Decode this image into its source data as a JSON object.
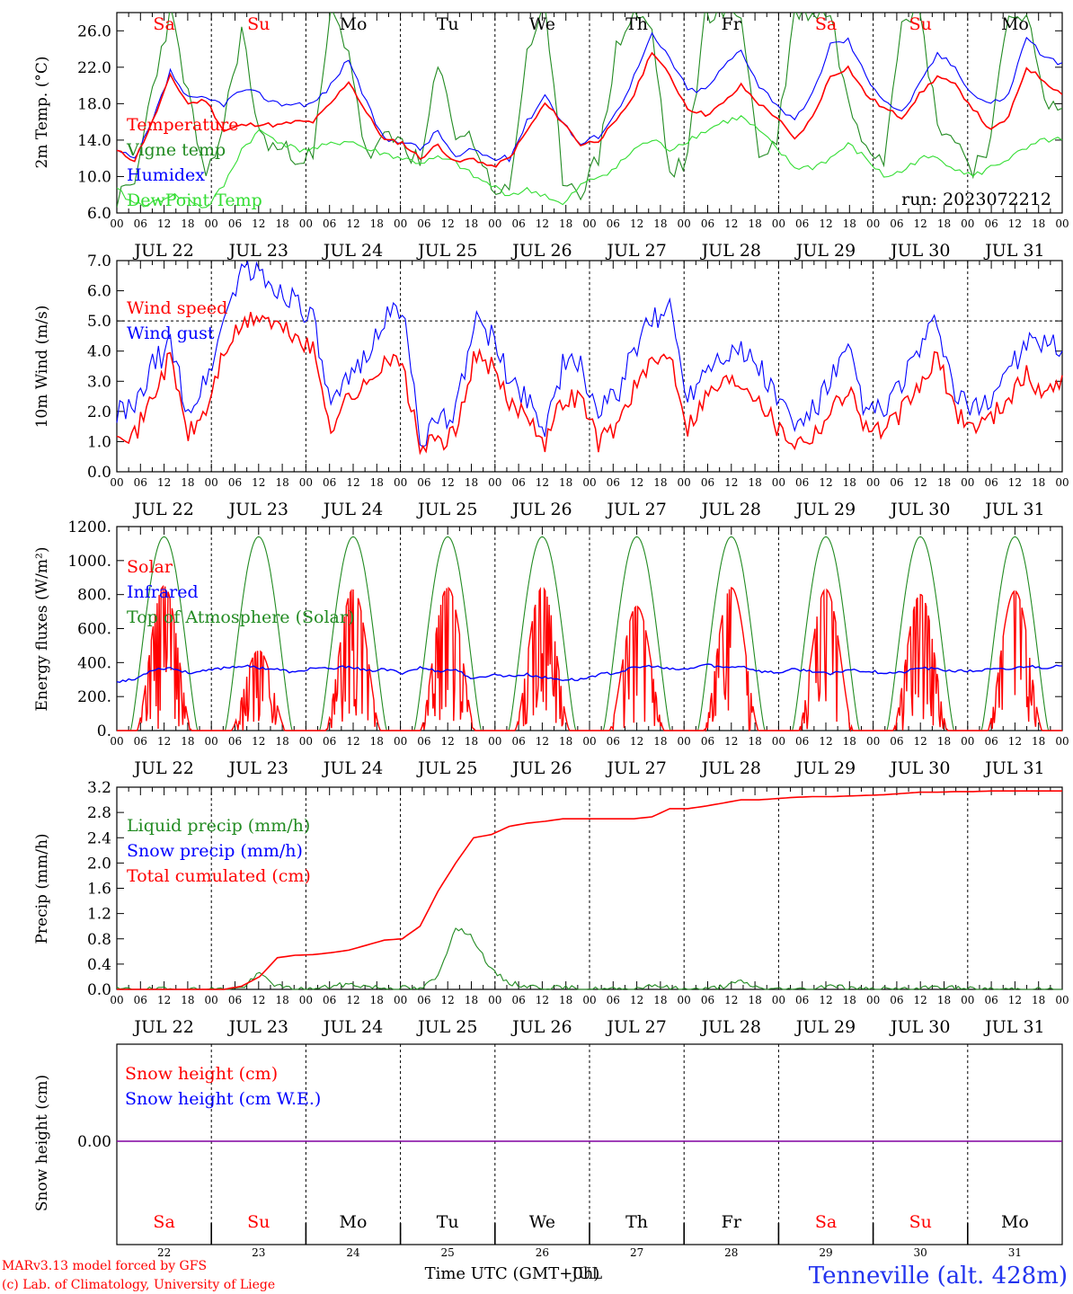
{
  "colors": {
    "red": "#ff0000",
    "green": "#228b22",
    "blue": "#0000ff",
    "lightgreen": "#33dd33",
    "purple": "#8000a0",
    "black": "#000000"
  },
  "footer": {
    "credit_line1": "MARv3.13 model forced by GFS",
    "credit_line2": "(c) Lab. of Climatology, University of Liege",
    "xaxis_title": "Time UTC (GMT+0h)",
    "xaxis_overlap": "JUL",
    "station": "Tenneville (alt. 428m)"
  },
  "axis": {
    "hour_labels": [
      "00",
      "06",
      "12",
      "18",
      "00",
      "06",
      "12",
      "18",
      "00",
      "06",
      "12",
      "18",
      "00",
      "06",
      "12",
      "18",
      "00",
      "06",
      "12",
      "18",
      "00",
      "06",
      "12",
      "18",
      "00",
      "06",
      "12",
      "18",
      "00",
      "06",
      "12",
      "18",
      "00",
      "06",
      "12",
      "18",
      "00",
      "06",
      "12",
      "18",
      "00"
    ],
    "day_labels": [
      "JUL 22",
      "JUL 23",
      "JUL 24",
      "JUL 25",
      "JUL 26",
      "JUL 27",
      "JUL 28",
      "JUL 29",
      "JUL 30",
      "JUL 31"
    ],
    "weekdays": [
      "Sa",
      "Su",
      "Mo",
      "Tu",
      "We",
      "Th",
      "Fr",
      "Sa",
      "Su",
      "Mo"
    ],
    "weekend_flags": [
      true,
      true,
      false,
      false,
      false,
      false,
      false,
      true,
      true,
      false
    ],
    "day_numbers": [
      "22",
      "23",
      "24",
      "25",
      "26",
      "27",
      "28",
      "29",
      "30",
      "31"
    ]
  },
  "chart_data": [
    {
      "type": "line",
      "ylabel": "2m Temp. (°C)",
      "ylim": [
        6.0,
        28.0
      ],
      "yticks": [
        "6.0",
        "10.0",
        "14.0",
        "18.0",
        "22.0",
        "26.0"
      ],
      "run_label": "run: 2023072212",
      "series": [
        {
          "name": "Temperature",
          "color": "#ff0000",
          "values": [
            12.8,
            11.8,
            16,
            21,
            18,
            18.4,
            15,
            15.6,
            15.8,
            15.6,
            16,
            16,
            18,
            20.5,
            17,
            14,
            13.7,
            12,
            13.5,
            11.5,
            12,
            11,
            12,
            15,
            18,
            16,
            13.5,
            14,
            16,
            19,
            23.8,
            21,
            17.5,
            16.8,
            18,
            20,
            18,
            16.5,
            14,
            16.5,
            21,
            22,
            19,
            17.5,
            16.5,
            19,
            21,
            20,
            17.5,
            15,
            16.5,
            22,
            20.5,
            19
          ]
        },
        {
          "name": "Vigne temp",
          "color": "#228b22",
          "values": [
            7.5,
            9,
            20,
            28,
            19,
            9,
            16,
            26,
            14.5,
            13,
            12.5,
            12,
            28,
            24,
            12,
            14,
            14,
            11,
            22,
            15,
            14,
            9,
            8,
            24,
            28,
            10,
            8.5,
            12,
            24,
            28,
            26,
            10,
            12,
            28,
            28,
            28,
            12,
            14,
            28,
            28,
            28,
            18,
            14,
            12,
            28,
            28,
            16,
            14,
            11,
            14,
            28,
            28,
            18,
            17.5
          ]
        },
        {
          "name": "Humidex",
          "color": "#0000ff",
          "values": [
            12.8,
            11.8,
            16,
            21.5,
            18.5,
            18.5,
            18,
            19.5,
            19,
            18,
            18,
            18,
            20,
            23,
            18,
            14,
            14,
            13,
            15,
            12,
            13,
            12,
            12,
            16,
            19,
            16,
            13.5,
            14.5,
            17,
            21,
            25.5,
            23,
            19.5,
            19.5,
            22,
            24,
            20,
            18,
            16,
            19,
            24.5,
            25,
            21,
            18.5,
            17,
            20,
            23.5,
            22,
            19,
            18,
            19,
            25.5,
            23,
            22.5
          ]
        },
        {
          "name": "DewPoint Temp",
          "color": "#33dd33",
          "values": [
            8.5,
            7,
            7,
            8,
            7.5,
            6.5,
            9,
            13,
            15,
            14,
            13,
            13,
            13.5,
            14,
            13,
            12.5,
            12,
            11.5,
            12,
            11.5,
            10,
            9,
            8,
            8.5,
            8,
            6.8,
            9,
            10,
            11,
            13,
            14,
            13,
            14,
            15,
            16,
            16.5,
            15,
            13,
            11,
            11,
            12,
            13.5,
            12,
            10,
            10.5,
            12,
            12,
            11,
            10,
            11,
            12,
            13,
            14,
            14
          ]
        }
      ]
    },
    {
      "type": "line",
      "ylabel": "10m Wind (m/s)",
      "ylim": [
        0.0,
        7.0
      ],
      "yticks": [
        "0.0",
        "1.0",
        "2.0",
        "3.0",
        "4.0",
        "5.0",
        "6.0",
        "7.0"
      ],
      "series": [
        {
          "name": "Wind speed",
          "color": "#ff0000",
          "values": [
            1.5,
            1.2,
            2.5,
            3.8,
            1.2,
            2,
            4,
            4.8,
            5.2,
            4.8,
            4.5,
            4,
            1.5,
            2.5,
            2.8,
            3.8,
            3.5,
            0.8,
            1,
            1.2,
            3.8,
            3.5,
            2.2,
            2,
            1,
            2.4,
            2.5,
            1,
            1.5,
            2.8,
            3.5,
            4,
            1.5,
            2.5,
            3,
            3,
            2.5,
            1.5,
            1,
            1.2,
            2,
            2.8,
            1.5,
            1.3,
            2,
            2.8,
            3.8,
            2,
            1.5,
            1.8,
            2.5,
            3.2,
            2.5,
            3.2
          ]
        },
        {
          "name": "Wind gust",
          "color": "#0000ff",
          "values": [
            2,
            2,
            3.5,
            4.2,
            2,
            3,
            5,
            6.8,
            6.5,
            6,
            5.8,
            5,
            2,
            3,
            4,
            5,
            5.5,
            1.2,
            1.5,
            2,
            5,
            4.5,
            3,
            2.5,
            1.5,
            3.5,
            3.5,
            2,
            2.5,
            4,
            5,
            5.5,
            2.5,
            3.5,
            4,
            4,
            3.5,
            2.5,
            1.5,
            2,
            3,
            4,
            2,
            2,
            3,
            4,
            5,
            2.5,
            2,
            2.5,
            3.5,
            4.2,
            4.2,
            4
          ]
        }
      ]
    },
    {
      "type": "line",
      "ylabel": "Energy fluxes (W/m²)",
      "ylim": [
        0,
        1200
      ],
      "yticks": [
        "0.",
        "200.",
        "400.",
        "600.",
        "800.",
        "1000.",
        "1200."
      ],
      "series": [
        {
          "name": "Solar",
          "color": "#ff0000",
          "daily_peaks": [
            850,
            470,
            830,
            840,
            840,
            730,
            840,
            830,
            800,
            820
          ]
        },
        {
          "name": "Infrared",
          "color": "#0000ff",
          "values": [
            290,
            300,
            360,
            370,
            340,
            350,
            370,
            380,
            370,
            360,
            340,
            370,
            360,
            380,
            350,
            360,
            340,
            370,
            350,
            360,
            300,
            330,
            320,
            330,
            310,
            300,
            300,
            330,
            340,
            370,
            380,
            360,
            360,
            390,
            370,
            380,
            350,
            340,
            360,
            350,
            330,
            360,
            350,
            340,
            340,
            370,
            360,
            350,
            350,
            360,
            360,
            380,
            370,
            380
          ]
        },
        {
          "name": "Top of Atmosphere (Solar)",
          "color": "#228b22",
          "daily_peak": 1140
        }
      ]
    },
    {
      "type": "line",
      "ylabel": "Precip (mm/h)",
      "ylim": [
        0.0,
        3.2
      ],
      "yticks": [
        "0.0",
        "0.4",
        "0.8",
        "1.2",
        "1.6",
        "2.0",
        "2.4",
        "2.8",
        "3.2"
      ],
      "series": [
        {
          "name": "Liquid precip (mm/h)",
          "color": "#228b22",
          "values": [
            0,
            0,
            0,
            0,
            0,
            0,
            0,
            0.02,
            0.25,
            0.05,
            0,
            0,
            0.05,
            0.08,
            0.05,
            0.02,
            0.03,
            0,
            0.2,
            1.0,
            0.8,
            0.3,
            0.1,
            0.05,
            0.03,
            0.02,
            0.02,
            0,
            0,
            0,
            0.08,
            0.02,
            0,
            0,
            0.05,
            0.12,
            0.02,
            0,
            0,
            0,
            0.08,
            0.02,
            0,
            0,
            0,
            0,
            0.05,
            0.02,
            0,
            0,
            0,
            0,
            0,
            0
          ]
        },
        {
          "name": "Snow precip (mm/h)",
          "color": "#0000ff",
          "values": []
        },
        {
          "name": "Total cumulated (cm)",
          "color": "#ff0000",
          "values": [
            0,
            0,
            0,
            0,
            0,
            0,
            0,
            0.05,
            0.2,
            0.5,
            0.54,
            0.55,
            0.58,
            0.62,
            0.7,
            0.78,
            0.8,
            1.0,
            1.55,
            2.0,
            2.4,
            2.45,
            2.58,
            2.63,
            2.66,
            2.7,
            2.7,
            2.7,
            2.7,
            2.7,
            2.73,
            2.86,
            2.86,
            2.9,
            2.95,
            3.0,
            3.0,
            3.02,
            3.04,
            3.05,
            3.05,
            3.06,
            3.07,
            3.08,
            3.1,
            3.12,
            3.12,
            3.13,
            3.13,
            3.14,
            3.14,
            3.14,
            3.14,
            3.14
          ]
        }
      ]
    },
    {
      "type": "line",
      "ylabel": "Snow height (cm)",
      "yticks": [
        "0.00"
      ],
      "series": [
        {
          "name": "Snow height (cm)",
          "color": "#ff0000",
          "values": [
            0,
            0
          ]
        },
        {
          "name": "Snow height (cm W.E.)",
          "color": "#0000ff",
          "values": [
            0,
            0
          ]
        }
      ]
    }
  ]
}
